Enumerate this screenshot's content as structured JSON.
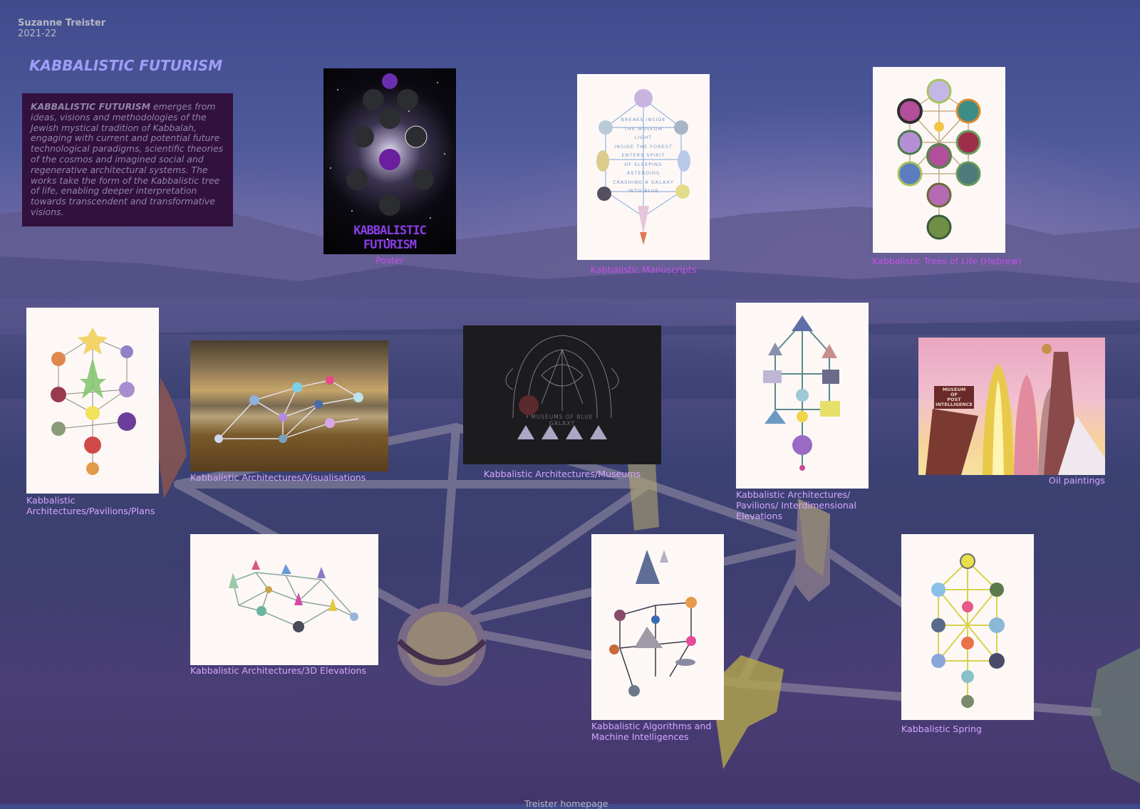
{
  "header": {
    "artist": "Suzanne Treister",
    "years": "2021-22",
    "title": "KABBALISTIC FUTURISM"
  },
  "intro": {
    "lead": "KABBALISTIC FUTURISM",
    "text": " emerges from ideas, visions and methodologies of the Jewish mystical tradition of Kabbalah, engaging with current and potential future technological paradigms, scientific theories of the cosmos and imagined social and regenerative architectural systems. The works take the form of the Kabbalistic tree of life, enabling deeper interpretation towards transcendent and transformative visions."
  },
  "works": [
    {
      "label": "Poster",
      "poster_text": "KABBALISTIC FUTURISM"
    },
    {
      "label": "Kabbalistic Manuscripts",
      "drawing_text": [
        "BREAKS INSIDE",
        "THE MUSEUM",
        "LIGHT",
        "INSIDE THE FOREST",
        "ENTERS SPIRIT",
        "OF SLEEPING",
        "ASTEROIDS",
        "CRASHING A GALAXY",
        "INTO BLUE"
      ]
    },
    {
      "label": "Kabbalistic Trees of Life (Hebrew)"
    },
    {
      "label": "Kabbalistic Architectures/Pavilions/Plans"
    },
    {
      "label": "Kabbalistic Architectures/Visualisations"
    },
    {
      "label": "Kabbalistic Architectures/Museums",
      "drawing_text": "MUSEUMS OF BLUE GALAXY"
    },
    {
      "label": "Kabbalistic Architectures/ Pavilions/ Interdimensional Elevations"
    },
    {
      "label": "Oil paintings",
      "sign_text": [
        "MUSEUM",
        "OF",
        "POST",
        "INTELLIGENCE"
      ]
    },
    {
      "label": "Kabbalistic Architectures/3D Elevations"
    },
    {
      "label": "Kabbalistic Algorithms and Machine Intelligences"
    },
    {
      "label": "Kabbalistic Spring"
    }
  ],
  "footer": {
    "link": "Treister homepage"
  },
  "colors": {
    "title": "#9f9df8",
    "caption": "#d6a6ff",
    "caption_highlight": "#c84ee9",
    "intro_bg": "#33113e",
    "intro_text": "#8f86a6"
  }
}
